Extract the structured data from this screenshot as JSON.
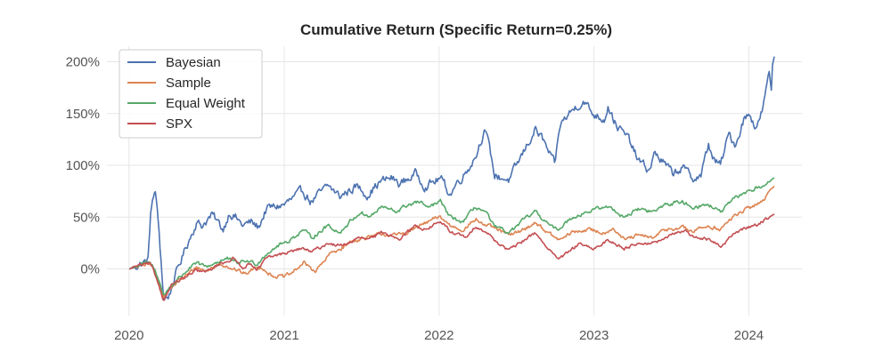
{
  "chart_data": {
    "type": "line",
    "title": "Cumulative Return (Specific Return=0.25%)",
    "xlabel": "",
    "ylabel": "",
    "xlim": [
      "2019-11-10",
      "2024-05-05"
    ],
    "ylim": [
      -45,
      215
    ],
    "x_ticks": [
      "2020",
      "2021",
      "2022",
      "2023",
      "2024"
    ],
    "x_tick_dates": [
      "2020-01-01",
      "2021-01-01",
      "2022-01-01",
      "2023-01-01",
      "2024-01-01"
    ],
    "y_ticks": [
      0,
      50,
      100,
      150,
      200
    ],
    "y_tick_labels": [
      "0%",
      "50%",
      "100%",
      "150%",
      "200%"
    ],
    "y_unit": "%",
    "grid": true,
    "legend_position": "top-left",
    "series": [
      {
        "name": "Bayesian",
        "color": "#4c72b0",
        "points": [
          [
            "2020-01-02",
            0
          ],
          [
            "2020-01-20",
            3
          ],
          [
            "2020-02-05",
            6
          ],
          [
            "2020-02-15",
            8
          ],
          [
            "2020-02-21",
            55
          ],
          [
            "2020-03-03",
            76
          ],
          [
            "2020-03-12",
            35
          ],
          [
            "2020-03-23",
            -30
          ],
          [
            "2020-04-05",
            -25
          ],
          [
            "2020-04-25",
            0
          ],
          [
            "2020-05-15",
            22
          ],
          [
            "2020-06-08",
            45
          ],
          [
            "2020-06-20",
            42
          ],
          [
            "2020-07-15",
            52
          ],
          [
            "2020-08-10",
            38
          ],
          [
            "2020-08-25",
            55
          ],
          [
            "2020-09-08",
            50
          ],
          [
            "2020-09-25",
            42
          ],
          [
            "2020-10-15",
            45
          ],
          [
            "2020-11-01",
            40
          ],
          [
            "2020-11-20",
            58
          ],
          [
            "2021-01-01",
            62
          ],
          [
            "2021-02-15",
            75
          ],
          [
            "2021-03-05",
            65
          ],
          [
            "2021-04-15",
            80
          ],
          [
            "2021-05-12",
            70
          ],
          [
            "2021-06-20",
            80
          ],
          [
            "2021-07-15",
            72
          ],
          [
            "2021-08-15",
            84
          ],
          [
            "2021-09-10",
            88
          ],
          [
            "2021-09-30",
            82
          ],
          [
            "2021-11-08",
            92
          ],
          [
            "2021-11-30",
            80
          ],
          [
            "2021-12-20",
            84
          ],
          [
            "2022-01-04",
            88
          ],
          [
            "2022-01-27",
            72
          ],
          [
            "2022-02-10",
            82
          ],
          [
            "2022-03-07",
            95
          ],
          [
            "2022-03-29",
            110
          ],
          [
            "2022-04-12",
            128
          ],
          [
            "2022-04-20",
            135
          ],
          [
            "2022-05-12",
            90
          ],
          [
            "2022-06-16",
            86
          ],
          [
            "2022-07-28",
            120
          ],
          [
            "2022-08-16",
            135
          ],
          [
            "2022-09-02",
            125
          ],
          [
            "2022-09-30",
            100
          ],
          [
            "2022-10-14",
            140
          ],
          [
            "2022-11-04",
            150
          ],
          [
            "2022-11-22",
            158
          ],
          [
            "2022-12-09",
            162
          ],
          [
            "2022-12-28",
            150
          ],
          [
            "2023-01-25",
            145
          ],
          [
            "2023-02-03",
            158
          ],
          [
            "2023-02-21",
            140
          ],
          [
            "2023-03-13",
            130
          ],
          [
            "2023-03-24",
            125
          ],
          [
            "2023-04-15",
            105
          ],
          [
            "2023-05-10",
            95
          ],
          [
            "2023-05-25",
            112
          ],
          [
            "2023-06-15",
            102
          ],
          [
            "2023-07-05",
            92
          ],
          [
            "2023-07-28",
            98
          ],
          [
            "2023-08-20",
            88
          ],
          [
            "2023-09-10",
            90
          ],
          [
            "2023-09-28",
            120
          ],
          [
            "2023-10-12",
            104
          ],
          [
            "2023-10-26",
            100
          ],
          [
            "2023-11-15",
            130
          ],
          [
            "2023-12-01",
            120
          ],
          [
            "2023-12-20",
            145
          ],
          [
            "2024-01-05",
            150
          ],
          [
            "2024-01-15",
            138
          ],
          [
            "2024-01-25",
            142
          ],
          [
            "2024-02-01",
            152
          ],
          [
            "2024-02-10",
            170
          ],
          [
            "2024-02-18",
            190
          ],
          [
            "2024-02-23",
            172
          ],
          [
            "2024-02-26",
            198
          ],
          [
            "2024-03-01",
            205
          ]
        ]
      },
      {
        "name": "Sample",
        "color": "#dd8452",
        "points": [
          [
            "2020-01-02",
            0
          ],
          [
            "2020-01-20",
            2
          ],
          [
            "2020-02-15",
            5
          ],
          [
            "2020-02-25",
            2
          ],
          [
            "2020-03-10",
            -10
          ],
          [
            "2020-03-23",
            -27
          ],
          [
            "2020-04-05",
            -20
          ],
          [
            "2020-04-25",
            -12
          ],
          [
            "2020-05-20",
            -5
          ],
          [
            "2020-06-08",
            2
          ],
          [
            "2020-07-01",
            -2
          ],
          [
            "2020-08-03",
            5
          ],
          [
            "2020-08-20",
            3
          ],
          [
            "2020-09-15",
            -2
          ],
          [
            "2020-10-01",
            -5
          ],
          [
            "2020-10-20",
            0
          ],
          [
            "2020-11-10",
            2
          ],
          [
            "2020-12-01",
            -6
          ],
          [
            "2021-01-01",
            -8
          ],
          [
            "2021-01-20",
            -4
          ],
          [
            "2021-02-15",
            6
          ],
          [
            "2021-03-15",
            -2
          ],
          [
            "2021-04-01",
            5
          ],
          [
            "2021-04-20",
            15
          ],
          [
            "2021-05-15",
            20
          ],
          [
            "2021-06-15",
            28
          ],
          [
            "2021-07-20",
            30
          ],
          [
            "2021-08-20",
            34
          ],
          [
            "2021-09-20",
            32
          ],
          [
            "2021-10-20",
            36
          ],
          [
            "2021-11-20",
            42
          ],
          [
            "2021-12-20",
            48
          ],
          [
            "2022-01-04",
            50
          ],
          [
            "2022-01-27",
            42
          ],
          [
            "2022-02-25",
            38
          ],
          [
            "2022-03-29",
            48
          ],
          [
            "2022-04-20",
            42
          ],
          [
            "2022-05-20",
            38
          ],
          [
            "2022-06-16",
            32
          ],
          [
            "2022-07-28",
            40
          ],
          [
            "2022-08-16",
            45
          ],
          [
            "2022-09-30",
            30
          ],
          [
            "2022-10-14",
            28
          ],
          [
            "2022-11-10",
            35
          ],
          [
            "2022-12-15",
            38
          ],
          [
            "2023-01-25",
            35
          ],
          [
            "2023-02-15",
            40
          ],
          [
            "2023-03-13",
            28
          ],
          [
            "2023-04-15",
            32
          ],
          [
            "2023-05-25",
            30
          ],
          [
            "2023-06-15",
            38
          ],
          [
            "2023-07-28",
            40
          ],
          [
            "2023-08-20",
            36
          ],
          [
            "2023-09-28",
            42
          ],
          [
            "2023-10-26",
            38
          ],
          [
            "2023-11-30",
            52
          ],
          [
            "2023-12-28",
            58
          ],
          [
            "2024-01-20",
            62
          ],
          [
            "2024-02-10",
            70
          ],
          [
            "2024-03-01",
            80
          ]
        ]
      },
      {
        "name": "Equal Weight",
        "color": "#55a868",
        "points": [
          [
            "2020-01-02",
            0
          ],
          [
            "2020-01-20",
            3
          ],
          [
            "2020-02-15",
            6
          ],
          [
            "2020-02-25",
            3
          ],
          [
            "2020-03-10",
            -8
          ],
          [
            "2020-03-23",
            -26
          ],
          [
            "2020-04-05",
            -18
          ],
          [
            "2020-04-25",
            -10
          ],
          [
            "2020-05-20",
            0
          ],
          [
            "2020-06-08",
            5
          ],
          [
            "2020-07-01",
            2
          ],
          [
            "2020-08-03",
            8
          ],
          [
            "2020-08-20",
            10
          ],
          [
            "2020-09-10",
            5
          ],
          [
            "2020-10-01",
            8
          ],
          [
            "2020-10-28",
            5
          ],
          [
            "2020-11-20",
            15
          ],
          [
            "2020-12-15",
            22
          ],
          [
            "2021-01-15",
            28
          ],
          [
            "2021-02-15",
            38
          ],
          [
            "2021-03-05",
            30
          ],
          [
            "2021-04-15",
            42
          ],
          [
            "2021-05-12",
            35
          ],
          [
            "2021-06-10",
            48
          ],
          [
            "2021-07-01",
            55
          ],
          [
            "2021-07-20",
            50
          ],
          [
            "2021-08-20",
            60
          ],
          [
            "2021-09-20",
            55
          ],
          [
            "2021-10-20",
            62
          ],
          [
            "2021-11-20",
            65
          ],
          [
            "2021-12-01",
            58
          ],
          [
            "2021-12-20",
            62
          ],
          [
            "2022-01-04",
            65
          ],
          [
            "2022-01-27",
            50
          ],
          [
            "2022-02-25",
            45
          ],
          [
            "2022-03-29",
            60
          ],
          [
            "2022-04-20",
            55
          ],
          [
            "2022-05-12",
            40
          ],
          [
            "2022-06-16",
            35
          ],
          [
            "2022-07-28",
            50
          ],
          [
            "2022-08-16",
            55
          ],
          [
            "2022-09-30",
            38
          ],
          [
            "2022-10-14",
            40
          ],
          [
            "2022-11-10",
            50
          ],
          [
            "2022-12-15",
            55
          ],
          [
            "2023-01-25",
            60
          ],
          [
            "2023-02-15",
            58
          ],
          [
            "2023-03-13",
            50
          ],
          [
            "2023-04-15",
            58
          ],
          [
            "2023-05-25",
            55
          ],
          [
            "2023-06-15",
            62
          ],
          [
            "2023-07-28",
            65
          ],
          [
            "2023-08-20",
            60
          ],
          [
            "2023-09-28",
            62
          ],
          [
            "2023-10-26",
            55
          ],
          [
            "2023-11-30",
            68
          ],
          [
            "2023-12-28",
            75
          ],
          [
            "2024-01-20",
            78
          ],
          [
            "2024-02-10",
            82
          ],
          [
            "2024-03-01",
            88
          ]
        ]
      },
      {
        "name": "SPX",
        "color": "#c44e52",
        "points": [
          [
            "2020-01-02",
            0
          ],
          [
            "2020-01-20",
            3
          ],
          [
            "2020-02-19",
            5
          ],
          [
            "2020-03-05",
            -8
          ],
          [
            "2020-03-23",
            -30
          ],
          [
            "2020-04-10",
            -15
          ],
          [
            "2020-05-15",
            -8
          ],
          [
            "2020-06-08",
            -2
          ],
          [
            "2020-07-01",
            -3
          ],
          [
            "2020-08-03",
            5
          ],
          [
            "2020-09-02",
            10
          ],
          [
            "2020-09-25",
            2
          ],
          [
            "2020-10-15",
            5
          ],
          [
            "2020-10-30",
            0
          ],
          [
            "2020-11-20",
            10
          ],
          [
            "2020-12-31",
            15
          ],
          [
            "2021-02-15",
            20
          ],
          [
            "2021-03-05",
            16
          ],
          [
            "2021-04-15",
            25
          ],
          [
            "2021-05-12",
            22
          ],
          [
            "2021-06-30",
            30
          ],
          [
            "2021-07-20",
            28
          ],
          [
            "2021-08-20",
            35
          ],
          [
            "2021-09-30",
            30
          ],
          [
            "2021-11-08",
            42
          ],
          [
            "2021-12-01",
            38
          ],
          [
            "2022-01-04",
            46
          ],
          [
            "2022-01-27",
            36
          ],
          [
            "2022-03-08",
            30
          ],
          [
            "2022-03-29",
            42
          ],
          [
            "2022-04-20",
            36
          ],
          [
            "2022-05-20",
            25
          ],
          [
            "2022-06-16",
            18
          ],
          [
            "2022-07-28",
            30
          ],
          [
            "2022-08-16",
            35
          ],
          [
            "2022-09-30",
            12
          ],
          [
            "2022-10-14",
            10
          ],
          [
            "2022-11-30",
            25
          ],
          [
            "2022-12-28",
            18
          ],
          [
            "2023-02-02",
            28
          ],
          [
            "2023-03-13",
            20
          ],
          [
            "2023-04-15",
            25
          ],
          [
            "2023-05-25",
            25
          ],
          [
            "2023-06-30",
            32
          ],
          [
            "2023-07-31",
            38
          ],
          [
            "2023-08-20",
            32
          ],
          [
            "2023-09-28",
            28
          ],
          [
            "2023-10-27",
            22
          ],
          [
            "2023-11-30",
            35
          ],
          [
            "2023-12-28",
            40
          ],
          [
            "2024-01-20",
            43
          ],
          [
            "2024-02-10",
            48
          ],
          [
            "2024-03-01",
            53
          ]
        ]
      }
    ]
  }
}
